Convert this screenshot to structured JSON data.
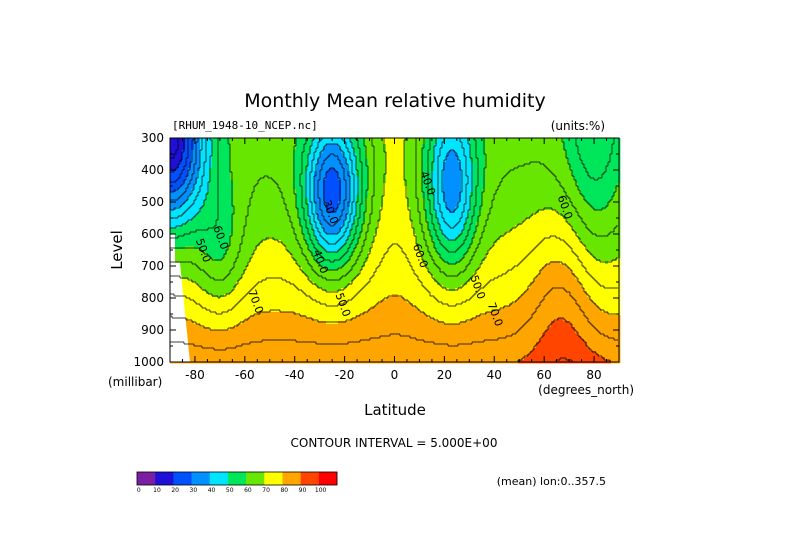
{
  "chart_data": {
    "type": "heatmap",
    "title": "Monthly Mean relative humidity",
    "dataset_label": "[RHUM_1948-10_NCEP.nc]",
    "units_label": "(units:%)",
    "xlabel": "Latitude",
    "x_units": "(degrees_north)",
    "ylabel": "Level",
    "y_units": "(millibar)",
    "xlim": [
      -90,
      90
    ],
    "ylim": [
      1000,
      300
    ],
    "x_ticks": [
      -80,
      -60,
      -40,
      -20,
      0,
      20,
      40,
      60,
      80
    ],
    "y_ticks": [
      300,
      400,
      500,
      600,
      700,
      800,
      900,
      1000
    ],
    "contour_interval_text": "CONTOUR INTERVAL = 5.000E+00",
    "footer_note": "(mean) lon:0..357.5",
    "colorbar": {
      "ticks": [
        0,
        10,
        20,
        30,
        40,
        50,
        60,
        70,
        80,
        90,
        100
      ],
      "colors": [
        "#7b1fa2",
        "#1e10d6",
        "#0050ff",
        "#0090ff",
        "#00e5ff",
        "#00e65a",
        "#66e600",
        "#ffff00",
        "#ffa500",
        "#ff4500",
        "#ff0000"
      ]
    },
    "contour_labels": [
      {
        "text": "50.0",
        "lat": -78,
        "p": 655
      },
      {
        "text": "60.0",
        "lat": -71,
        "p": 615
      },
      {
        "text": "70.0",
        "lat": -57,
        "p": 815
      },
      {
        "text": "30.0",
        "lat": -27,
        "p": 535
      },
      {
        "text": "40.0",
        "lat": -31,
        "p": 690
      },
      {
        "text": "50.0",
        "lat": -22,
        "p": 825
      },
      {
        "text": "40.0",
        "lat": 12,
        "p": 445
      },
      {
        "text": "60.0",
        "lat": 9,
        "p": 672
      },
      {
        "text": "50.0",
        "lat": 32,
        "p": 770
      },
      {
        "text": "70.0",
        "lat": 39,
        "p": 855
      },
      {
        "text": "60.0",
        "lat": 67,
        "p": 520
      }
    ]
  }
}
